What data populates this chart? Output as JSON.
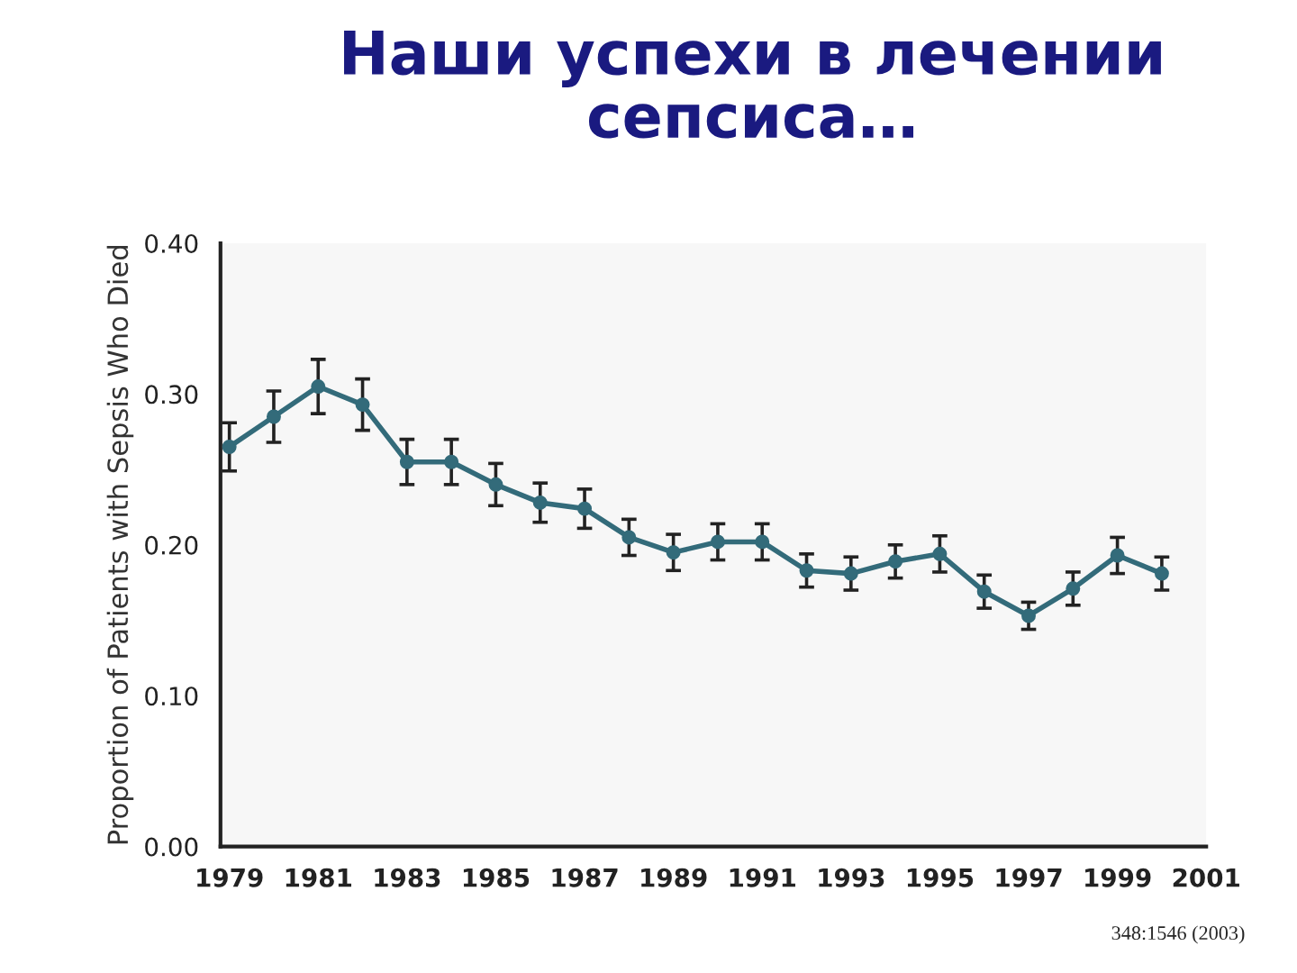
{
  "chart_data": {
    "type": "line",
    "title": "Наши успехи в лечении\nсепсиса…",
    "ylabel": "Proportion of Patients with Sepsis Who Died",
    "x": [
      1979,
      1980,
      1981,
      1982,
      1983,
      1984,
      1985,
      1986,
      1987,
      1988,
      1989,
      1990,
      1991,
      1992,
      1993,
      1994,
      1995,
      1996,
      1997,
      1998,
      1999,
      2000
    ],
    "series": [
      {
        "color": "#336b7a",
        "values": [
          0.265,
          0.285,
          0.305,
          0.293,
          0.255,
          0.255,
          0.24,
          0.228,
          0.224,
          0.205,
          0.195,
          0.202,
          0.202,
          0.183,
          0.181,
          0.189,
          0.194,
          0.169,
          0.153,
          0.171,
          0.193,
          0.181
        ],
        "errors": [
          0.016,
          0.017,
          0.018,
          0.017,
          0.015,
          0.015,
          0.014,
          0.013,
          0.013,
          0.012,
          0.012,
          0.012,
          0.012,
          0.011,
          0.011,
          0.011,
          0.012,
          0.011,
          0.009,
          0.011,
          0.012,
          0.011
        ]
      }
    ],
    "xlim": [
      1978.8,
      2001
    ],
    "xticks": [
      1979,
      1981,
      1983,
      1985,
      1987,
      1989,
      1991,
      1993,
      1995,
      1997,
      1999,
      2001
    ],
    "ylim": [
      0,
      0.4
    ],
    "yticks": [
      {
        "value": 0,
        "label": "0.00"
      },
      {
        "value": 0.1,
        "label": "0.10"
      },
      {
        "value": 0.2,
        "label": "0.20"
      },
      {
        "value": 0.3,
        "label": "0.30"
      },
      {
        "value": 0.4,
        "label": "0.40"
      }
    ],
    "marker": "circle",
    "line_style": "solid",
    "grid": false,
    "legend": false,
    "annotations": [
      "348:1546 (2003)"
    ]
  }
}
